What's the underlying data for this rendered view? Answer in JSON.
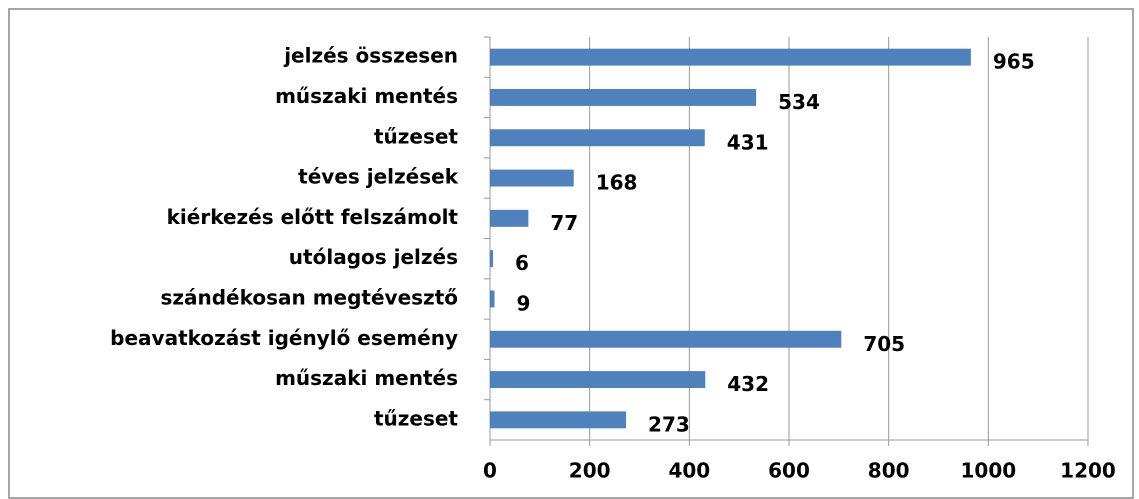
{
  "chart_data": {
    "type": "bar",
    "orientation": "horizontal",
    "categories": [
      "jelzés összesen",
      "műszaki mentés",
      "tűzeset",
      "téves jelzések",
      "kiérkezés előtt felszámolt",
      "utólagos jelzés",
      "szándékosan megtévesztő",
      "beavatkozást igénylő esemény",
      "műszaki mentés",
      "tűzeset"
    ],
    "values": [
      965,
      534,
      431,
      168,
      77,
      6,
      9,
      705,
      432,
      273
    ],
    "color": "#4f81bd",
    "xlim": [
      0,
      1200
    ],
    "xticks": [
      0,
      200,
      400,
      600,
      800,
      1000,
      1200
    ],
    "grid": true
  }
}
